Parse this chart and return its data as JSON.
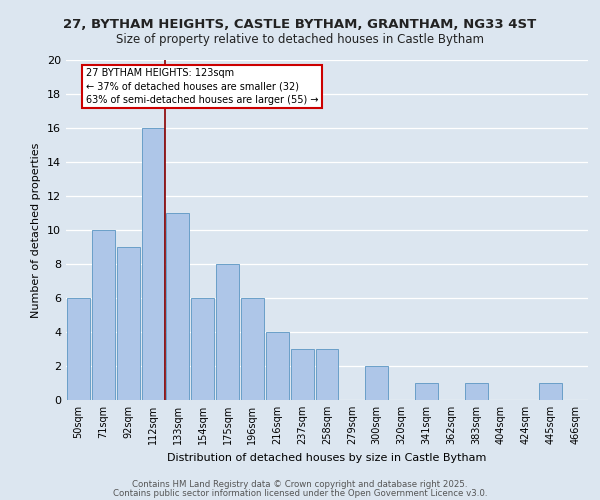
{
  "title1": "27, BYTHAM HEIGHTS, CASTLE BYTHAM, GRANTHAM, NG33 4ST",
  "title2": "Size of property relative to detached houses in Castle Bytham",
  "xlabel": "Distribution of detached houses by size in Castle Bytham",
  "ylabel": "Number of detached properties",
  "categories": [
    "50sqm",
    "71sqm",
    "92sqm",
    "112sqm",
    "133sqm",
    "154sqm",
    "175sqm",
    "196sqm",
    "216sqm",
    "237sqm",
    "258sqm",
    "279sqm",
    "300sqm",
    "320sqm",
    "341sqm",
    "362sqm",
    "383sqm",
    "404sqm",
    "424sqm",
    "445sqm",
    "466sqm"
  ],
  "values": [
    6,
    10,
    9,
    16,
    11,
    6,
    8,
    6,
    4,
    3,
    3,
    0,
    2,
    0,
    1,
    0,
    1,
    0,
    0,
    1,
    0
  ],
  "bar_color": "#aec6e8",
  "bar_edge_color": "#6a9fc8",
  "background_color": "#dce6f0",
  "grid_color": "#ffffff",
  "ylim": [
    0,
    20
  ],
  "yticks": [
    0,
    2,
    4,
    6,
    8,
    10,
    12,
    14,
    16,
    18,
    20
  ],
  "property_line_x": 3.5,
  "annotation_text": "27 BYTHAM HEIGHTS: 123sqm\n← 37% of detached houses are smaller (32)\n63% of semi-detached houses are larger (55) →",
  "annotation_box_color": "#ffffff",
  "annotation_box_edge_color": "#cc0000",
  "property_line_color": "#8b0000",
  "footer1": "Contains HM Land Registry data © Crown copyright and database right 2025.",
  "footer2": "Contains public sector information licensed under the Open Government Licence v3.0."
}
